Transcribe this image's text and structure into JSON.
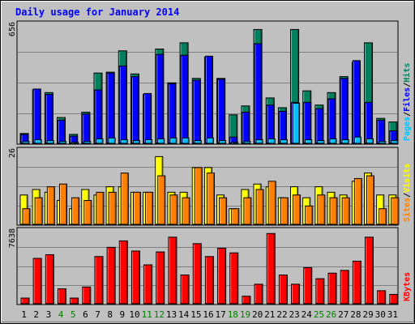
{
  "title": "Daily usage for January 2014",
  "colors": {
    "background": "#c0c0c0",
    "border": "#000000",
    "title": "#0000ff",
    "grid": "#808080",
    "hits": "#00805c",
    "files": "#0000ff",
    "pages": "#00c0ff",
    "visits": "#ffff00",
    "sites": "#ff8000",
    "kbytes": "#ff0000",
    "weekday_label": "#000000",
    "weekend_label": "#008000"
  },
  "chart_data": [
    {
      "type": "bar",
      "name": "hits-files-pages",
      "ymax_label": "656",
      "ymax": 656,
      "right_label": [
        "Pages",
        "/",
        "Files",
        "/",
        "Hits"
      ],
      "categories": [
        "1",
        "2",
        "3",
        "4",
        "5",
        "6",
        "7",
        "8",
        "9",
        "10",
        "11",
        "12",
        "13",
        "14",
        "15",
        "16",
        "17",
        "18",
        "19",
        "20",
        "21",
        "22",
        "23",
        "24",
        "25",
        "26",
        "27",
        "28",
        "29",
        "30",
        "31"
      ],
      "series": [
        {
          "key": "hits",
          "values": [
            60,
            305,
            290,
            150,
            55,
            180,
            400,
            405,
            525,
            395,
            280,
            535,
            345,
            570,
            370,
            490,
            370,
            165,
            215,
            645,
            260,
            205,
            645,
            300,
            220,
            290,
            380,
            460,
            570,
            145,
            125
          ]
        },
        {
          "key": "files",
          "values": [
            55,
            310,
            280,
            135,
            45,
            170,
            305,
            400,
            440,
            380,
            285,
            505,
            340,
            500,
            360,
            495,
            365,
            40,
            180,
            565,
            220,
            185,
            235,
            235,
            200,
            255,
            370,
            470,
            235,
            135,
            75
          ]
        },
        {
          "key": "pages",
          "values": [
            15,
            25,
            20,
            15,
            10,
            15,
            30,
            35,
            25,
            20,
            25,
            30,
            35,
            35,
            20,
            35,
            20,
            10,
            15,
            25,
            30,
            25,
            230,
            25,
            20,
            30,
            25,
            40,
            30,
            15,
            20
          ]
        }
      ]
    },
    {
      "type": "bar",
      "name": "visits-sites",
      "ymax_label": "26",
      "ymax": 26,
      "right_label": [
        "Sites",
        "/",
        "Visits"
      ],
      "categories": [
        "1",
        "2",
        "3",
        "4",
        "5",
        "6",
        "7",
        "8",
        "9",
        "10",
        "11",
        "12",
        "13",
        "14",
        "15",
        "16",
        "17",
        "18",
        "19",
        "20",
        "21",
        "22",
        "23",
        "24",
        "25",
        "26",
        "27",
        "28",
        "29",
        "30",
        "31"
      ],
      "series": [
        {
          "key": "visits",
          "values": [
            11,
            13,
            12,
            9,
            6,
            13,
            11,
            14,
            14,
            12,
            12,
            25,
            12,
            12,
            21,
            21,
            11,
            6,
            13,
            15,
            14,
            10,
            14,
            10,
            14,
            12,
            11,
            16,
            19,
            11,
            11
          ]
        },
        {
          "key": "sites",
          "values": [
            6,
            10,
            14,
            15,
            10,
            9,
            12,
            12,
            19,
            12,
            12,
            18,
            11,
            10,
            21,
            19,
            10,
            6,
            10,
            13,
            16,
            10,
            11,
            7,
            11,
            10,
            10,
            17,
            18,
            6,
            10
          ]
        }
      ]
    },
    {
      "type": "bar",
      "name": "kbytes",
      "ymax_label": "7638",
      "ymax": 7638,
      "right_label": [
        "KBytes"
      ],
      "categories": [
        "1",
        "2",
        "3",
        "4",
        "5",
        "6",
        "7",
        "8",
        "9",
        "10",
        "11",
        "12",
        "13",
        "14",
        "15",
        "16",
        "17",
        "18",
        "19",
        "20",
        "21",
        "22",
        "23",
        "24",
        "25",
        "26",
        "27",
        "28",
        "29",
        "30",
        "31"
      ],
      "series": [
        {
          "key": "kbytes",
          "values": [
            700,
            5000,
            5400,
            1700,
            700,
            1900,
            5200,
            6200,
            6900,
            5800,
            4300,
            5700,
            7300,
            3200,
            6600,
            5200,
            6100,
            5600,
            900,
            2200,
            7700,
            3200,
            2200,
            4000,
            2800,
            3400,
            3700,
            4700,
            7300,
            1500,
            1100
          ]
        }
      ]
    }
  ],
  "x_labels": [
    {
      "text": "1",
      "weekend": false
    },
    {
      "text": "2",
      "weekend": false
    },
    {
      "text": "3",
      "weekend": false
    },
    {
      "text": "4",
      "weekend": true
    },
    {
      "text": "5",
      "weekend": true
    },
    {
      "text": "6",
      "weekend": false
    },
    {
      "text": "7",
      "weekend": false
    },
    {
      "text": "8",
      "weekend": false
    },
    {
      "text": "9",
      "weekend": false
    },
    {
      "text": "10",
      "weekend": false
    },
    {
      "text": "11",
      "weekend": true
    },
    {
      "text": "12",
      "weekend": true
    },
    {
      "text": "13",
      "weekend": false
    },
    {
      "text": "14",
      "weekend": false
    },
    {
      "text": "15",
      "weekend": false
    },
    {
      "text": "16",
      "weekend": false
    },
    {
      "text": "17",
      "weekend": false
    },
    {
      "text": "18",
      "weekend": true
    },
    {
      "text": "19",
      "weekend": true
    },
    {
      "text": "20",
      "weekend": false
    },
    {
      "text": "21",
      "weekend": false
    },
    {
      "text": "22",
      "weekend": false
    },
    {
      "text": "23",
      "weekend": false
    },
    {
      "text": "24",
      "weekend": false
    },
    {
      "text": "25",
      "weekend": true
    },
    {
      "text": "26",
      "weekend": true
    },
    {
      "text": "27",
      "weekend": false
    },
    {
      "text": "28",
      "weekend": false
    },
    {
      "text": "29",
      "weekend": false
    },
    {
      "text": "30",
      "weekend": false
    },
    {
      "text": "31",
      "weekend": false
    }
  ]
}
